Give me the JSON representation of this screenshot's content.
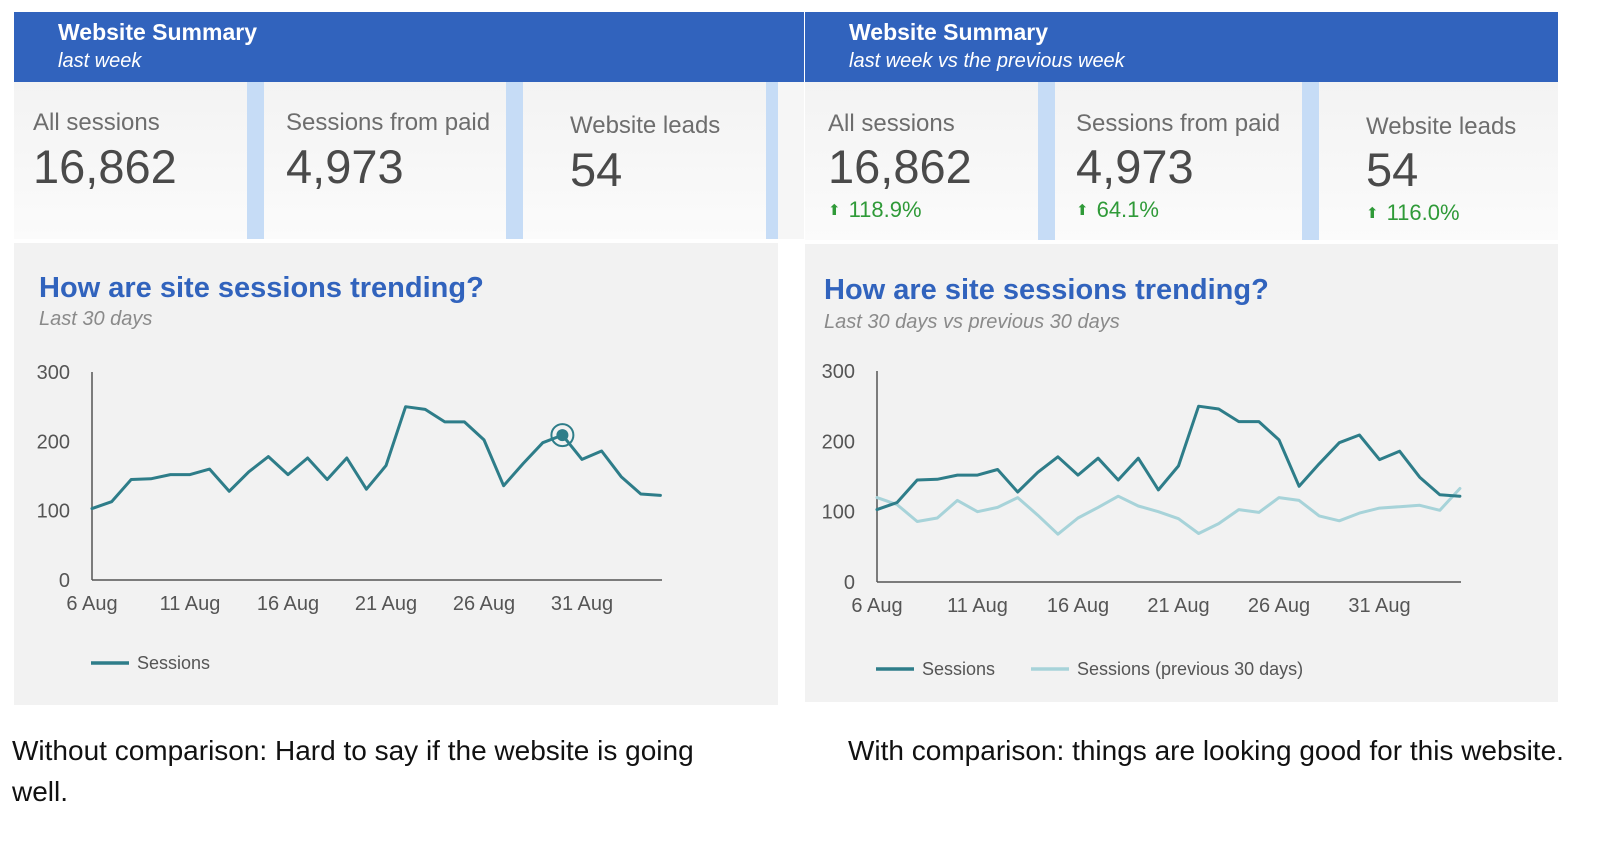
{
  "left": {
    "header": {
      "title": "Website Summary",
      "subtitle": "last week"
    },
    "kpis": [
      {
        "label": "All sessions",
        "value": "16,862"
      },
      {
        "label": "Sessions from paid",
        "value": "4,973"
      },
      {
        "label": "Website leads",
        "value": "54"
      }
    ],
    "chart_title": "How are site sessions trending?",
    "chart_subtitle": "Last 30 days",
    "caption": "Without comparison: Hard to say if the website is going well."
  },
  "right": {
    "header": {
      "title": "Website Summary",
      "subtitle": "last week vs the previous week"
    },
    "kpis": [
      {
        "label": "All sessions",
        "value": "16,862",
        "delta": "118.9%"
      },
      {
        "label": "Sessions from paid",
        "value": "4,973",
        "delta": "64.1%"
      },
      {
        "label": "Website leads",
        "value": "54",
        "delta": "116.0%"
      }
    ],
    "chart_title": "How are site sessions trending?",
    "chart_subtitle": "Last 30 days vs previous 30 days",
    "caption": "With comparison: things are looking good for this website."
  },
  "colors": {
    "header": "#3163bd",
    "separator": "#c6dcf6",
    "sessions": "#2e7d89",
    "previous": "#a7d3d9",
    "delta_up": "#2f9a38"
  },
  "chart_data": [
    {
      "type": "line",
      "title": "How are site sessions trending?",
      "subtitle": "Last 30 days",
      "x": [
        "6 Aug",
        "7 Aug",
        "8 Aug",
        "9 Aug",
        "10 Aug",
        "11 Aug",
        "12 Aug",
        "13 Aug",
        "14 Aug",
        "15 Aug",
        "16 Aug",
        "17 Aug",
        "18 Aug",
        "19 Aug",
        "20 Aug",
        "21 Aug",
        "22 Aug",
        "23 Aug",
        "24 Aug",
        "25 Aug",
        "26 Aug",
        "27 Aug",
        "28 Aug",
        "29 Aug",
        "30 Aug",
        "31 Aug",
        "1 Sep",
        "2 Sep",
        "3 Sep",
        "4 Sep"
      ],
      "x_ticks": [
        "6 Aug",
        "11 Aug",
        "16 Aug",
        "21 Aug",
        "26 Aug",
        "31 Aug"
      ],
      "ylim": [
        0,
        300
      ],
      "y_ticks": [
        0,
        100,
        200,
        300
      ],
      "legend": "bottom-left",
      "series": [
        {
          "name": "Sessions",
          "values": [
            103,
            113,
            145,
            146,
            152,
            152,
            160,
            128,
            156,
            178,
            152,
            176,
            145,
            176,
            131,
            165,
            250,
            246,
            228,
            228,
            202,
            136,
            168,
            198,
            209,
            174,
            186,
            149,
            124,
            122
          ]
        }
      ],
      "highlight_index": 24
    },
    {
      "type": "line",
      "title": "How are site sessions trending?",
      "subtitle": "Last 30 days vs previous 30 days",
      "x": [
        "6 Aug",
        "7 Aug",
        "8 Aug",
        "9 Aug",
        "10 Aug",
        "11 Aug",
        "12 Aug",
        "13 Aug",
        "14 Aug",
        "15 Aug",
        "16 Aug",
        "17 Aug",
        "18 Aug",
        "19 Aug",
        "20 Aug",
        "21 Aug",
        "22 Aug",
        "23 Aug",
        "24 Aug",
        "25 Aug",
        "26 Aug",
        "27 Aug",
        "28 Aug",
        "29 Aug",
        "30 Aug",
        "31 Aug",
        "1 Sep",
        "2 Sep",
        "3 Sep",
        "4 Sep"
      ],
      "x_ticks": [
        "6 Aug",
        "11 Aug",
        "16 Aug",
        "21 Aug",
        "26 Aug",
        "31 Aug"
      ],
      "ylim": [
        0,
        300
      ],
      "y_ticks": [
        0,
        100,
        200,
        300
      ],
      "legend": "bottom-left",
      "series": [
        {
          "name": "Sessions",
          "values": [
            103,
            113,
            145,
            146,
            152,
            152,
            160,
            128,
            156,
            178,
            152,
            176,
            145,
            176,
            131,
            165,
            250,
            246,
            228,
            228,
            202,
            136,
            168,
            198,
            209,
            174,
            186,
            149,
            124,
            122
          ]
        },
        {
          "name": "Sessions (previous 30 days)",
          "values": [
            120,
            110,
            86,
            91,
            116,
            100,
            106,
            120,
            95,
            68,
            91,
            106,
            122,
            108,
            100,
            90,
            69,
            83,
            103,
            99,
            120,
            116,
            94,
            87,
            98,
            105,
            107,
            109,
            102,
            133
          ]
        }
      ]
    }
  ]
}
